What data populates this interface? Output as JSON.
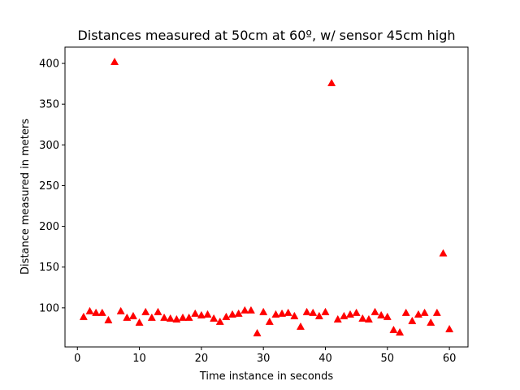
{
  "chart_data": {
    "type": "scatter",
    "title": "Distances measured at 50cm at 60º, w/ sensor 45cm high",
    "xlabel": "Time instance in seconds",
    "ylabel": "Distance measured in meters",
    "xlim": [
      -2,
      63
    ],
    "ylim": [
      52,
      420
    ],
    "xticks": [
      0,
      10,
      20,
      30,
      40,
      50,
      60
    ],
    "yticks": [
      100,
      150,
      200,
      250,
      300,
      350,
      400
    ],
    "grid": false,
    "marker": "triangle-up",
    "marker_color": "#ff0000",
    "series": [
      {
        "x": [
          1,
          2,
          3,
          4,
          5,
          6,
          7,
          8,
          9,
          10,
          11,
          12,
          13,
          14,
          15,
          16,
          17,
          18,
          19,
          20,
          21,
          22,
          23,
          24,
          25,
          26,
          27,
          28,
          29,
          30,
          31,
          32,
          33,
          34,
          35,
          36,
          37,
          38,
          39,
          40,
          41,
          42,
          43,
          44,
          45,
          46,
          47,
          48,
          49,
          50,
          51,
          52,
          53,
          54,
          55,
          56,
          57,
          58,
          59,
          60
        ],
        "y": [
          89,
          96,
          94,
          94,
          85,
          402,
          96,
          88,
          90,
          82,
          95,
          88,
          95,
          88,
          87,
          86,
          88,
          88,
          93,
          91,
          92,
          87,
          83,
          89,
          92,
          93,
          97,
          97,
          69,
          95,
          83,
          92,
          93,
          94,
          90,
          77,
          95,
          94,
          90,
          95,
          376,
          86,
          90,
          92,
          94,
          87,
          86,
          95,
          91,
          89,
          73,
          70,
          94,
          84,
          92,
          94,
          82,
          94,
          167,
          74
        ]
      }
    ]
  }
}
